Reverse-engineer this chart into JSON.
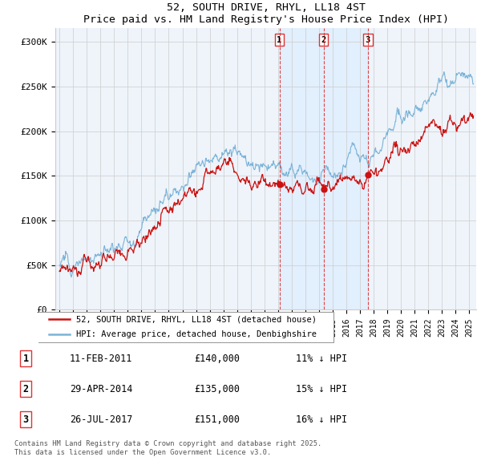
{
  "title": "52, SOUTH DRIVE, RHYL, LL18 4ST",
  "subtitle": "Price paid vs. HM Land Registry's House Price Index (HPI)",
  "ylabel_ticks": [
    "£0",
    "£50K",
    "£100K",
    "£150K",
    "£200K",
    "£250K",
    "£300K"
  ],
  "ytick_values": [
    0,
    50000,
    100000,
    150000,
    200000,
    250000,
    300000
  ],
  "ylim": [
    0,
    315000
  ],
  "xlim_start": 1994.7,
  "xlim_end": 2025.5,
  "hpi_color": "#7ab3d8",
  "price_color": "#cc1111",
  "vline_color": "#dd3333",
  "grid_color": "#cccccc",
  "shade_color": "#ddeeff",
  "background_color": "#eef4fa",
  "legend1": "52, SOUTH DRIVE, RHYL, LL18 4ST (detached house)",
  "legend2": "HPI: Average price, detached house, Denbighshire",
  "sale1_date": "11-FEB-2011",
  "sale1_price": "£140,000",
  "sale1_hpi": "11% ↓ HPI",
  "sale2_date": "29-APR-2014",
  "sale2_price": "£135,000",
  "sale2_hpi": "15% ↓ HPI",
  "sale3_date": "26-JUL-2017",
  "sale3_price": "£151,000",
  "sale3_hpi": "16% ↓ HPI",
  "vline1_x": 2011.1,
  "vline2_x": 2014.33,
  "vline3_x": 2017.57,
  "sale1_y": 140000,
  "sale2_y": 135000,
  "sale3_y": 151000,
  "footnote": "Contains HM Land Registry data © Crown copyright and database right 2025.\nThis data is licensed under the Open Government Licence v3.0."
}
